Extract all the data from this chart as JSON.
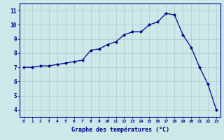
{
  "x": [
    0,
    1,
    2,
    3,
    4,
    5,
    6,
    7,
    8,
    9,
    10,
    11,
    12,
    13,
    14,
    15,
    16,
    17,
    18,
    19,
    20,
    21,
    22,
    23
  ],
  "y": [
    7.0,
    7.0,
    7.1,
    7.1,
    7.2,
    7.3,
    7.4,
    7.5,
    8.2,
    8.3,
    8.6,
    8.8,
    9.3,
    9.5,
    9.5,
    10.0,
    10.2,
    10.8,
    10.7,
    9.3,
    8.4,
    7.0,
    5.8,
    4.0
  ],
  "line_color": "#00008B",
  "marker": "D",
  "marker_size": 2.0,
  "bg_color": "#cce8e8",
  "grid_color": "#aacccc",
  "xlabel": "Graphe des températures (°C)",
  "ylabel_ticks": [
    4,
    5,
    6,
    7,
    8,
    9,
    10,
    11
  ],
  "xtick_labels": [
    "0",
    "1",
    "2",
    "3",
    "4",
    "5",
    "6",
    "7",
    "8",
    "9",
    "10",
    "11",
    "12",
    "13",
    "14",
    "15",
    "16",
    "17",
    "18",
    "19",
    "20",
    "21",
    "22",
    "23"
  ],
  "ylim": [
    3.5,
    11.5
  ],
  "xlim": [
    -0.5,
    23.5
  ],
  "axis_color": "#00008B",
  "tick_color": "#00008B"
}
